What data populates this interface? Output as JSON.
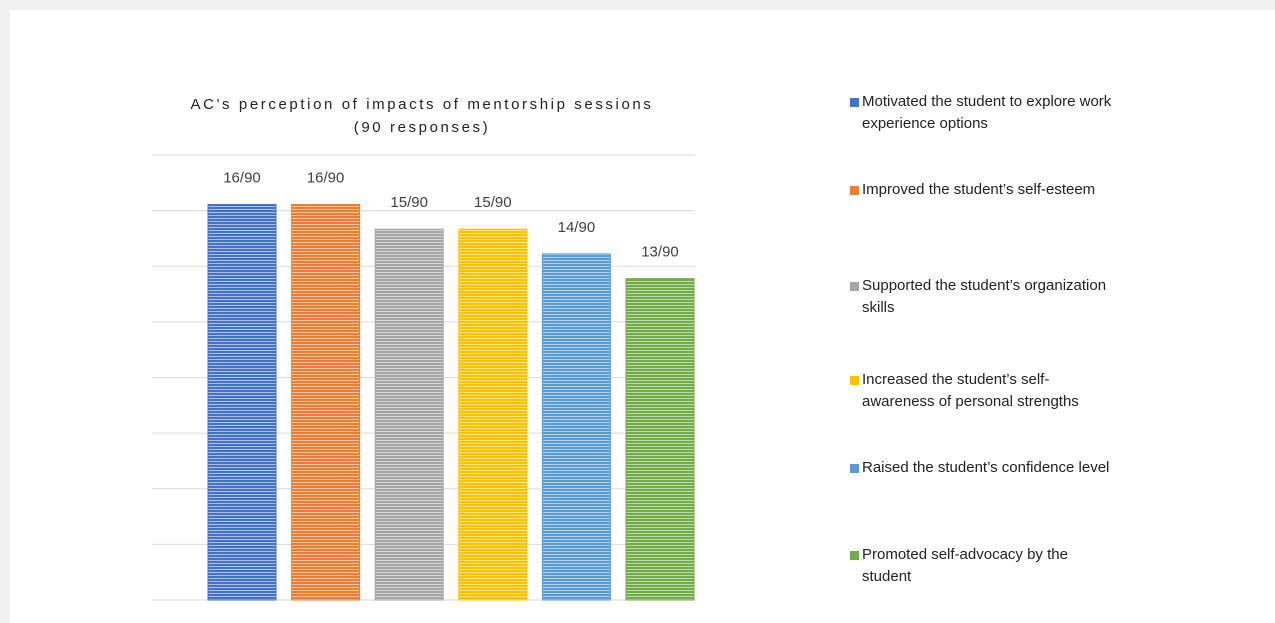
{
  "chart_data": {
    "type": "bar",
    "title_lines": [
      "AC's perception of impacts of mentorship sessions",
      "(90 responses)"
    ],
    "categories": [
      "Motivated the student to explore work experience options",
      "Improved the student’s self-esteem",
      "Supported the student’s organization skills",
      "Increased the student’s self-awareness of personal strengths",
      "Raised the student’s confidence level",
      "Promoted self-advocacy by the student"
    ],
    "values": [
      16,
      16,
      15,
      15,
      14,
      13
    ],
    "value_labels": [
      "16/90",
      "16/90",
      "15/90",
      "15/90",
      "14/90",
      "13/90"
    ],
    "colors": [
      "#4472c4",
      "#ed7d31",
      "#a5a5a5",
      "#ffc000",
      "#5b9bd5",
      "#70ad47"
    ],
    "ylim": [
      0,
      18
    ],
    "yticks": [
      0,
      2.25,
      4.5,
      6.75,
      9,
      11.25,
      13.5,
      15.75,
      18
    ],
    "grid": true,
    "legend": "right"
  }
}
